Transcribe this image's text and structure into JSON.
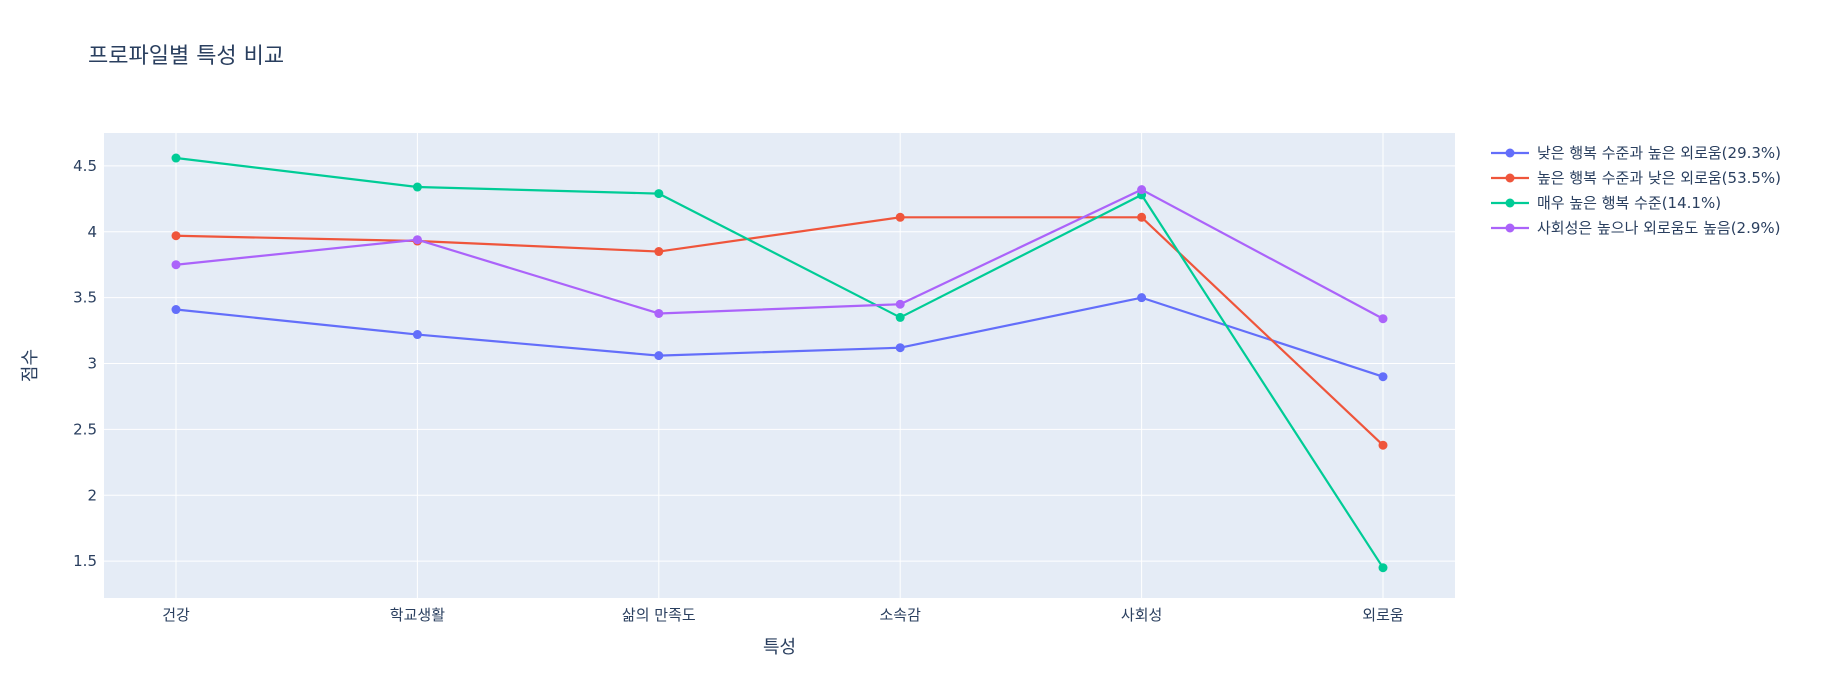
{
  "chart_data": {
    "type": "line",
    "title": "프로파일별 특성 비교",
    "xlabel": "특성",
    "ylabel": "점수",
    "categories": [
      "건강",
      "학교생활",
      "삶의 만족도",
      "소속감",
      "사회성",
      "외로움"
    ],
    "ylim": [
      1.22,
      4.75
    ],
    "yticks": [
      1.5,
      2,
      2.5,
      3,
      3.5,
      4,
      4.5
    ],
    "ytick_labels": [
      "1.5",
      "2",
      "2.5",
      "3",
      "3.5",
      "4",
      "4.5"
    ],
    "grid": true,
    "legend_position": "right",
    "series": [
      {
        "name": "낮은 행복 수준과 높은 외로움(29.3%)",
        "color": "#636efa",
        "values": [
          3.41,
          3.22,
          3.06,
          3.12,
          3.5,
          2.9
        ]
      },
      {
        "name": "높은 행복 수준과 낮은 외로움(53.5%)",
        "color": "#ef553b",
        "values": [
          3.97,
          3.93,
          3.85,
          4.11,
          4.11,
          2.38
        ]
      },
      {
        "name": "매우 높은 행복 수준(14.1%)",
        "color": "#00cc96",
        "values": [
          4.56,
          4.34,
          4.29,
          3.35,
          4.28,
          1.45
        ]
      },
      {
        "name": "사회성은 높으나 외로움도 높음(2.9%)",
        "color": "#ab63fa",
        "values": [
          3.75,
          3.94,
          3.38,
          3.45,
          4.32,
          3.34
        ]
      }
    ]
  },
  "style": {
    "plot_bg": "#e5ecf6",
    "grid_color": "#ffffff",
    "text_color": "#2a3f5f"
  }
}
